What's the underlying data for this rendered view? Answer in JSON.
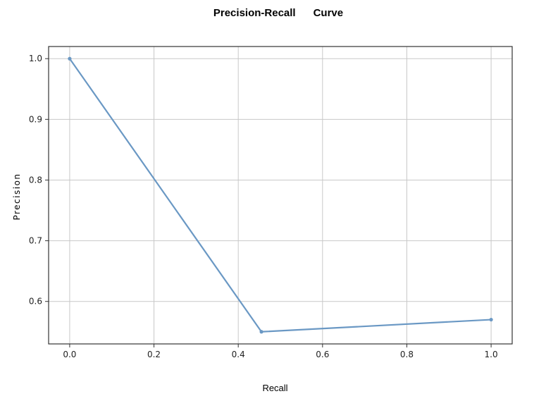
{
  "chart_data": {
    "type": "line",
    "title": "Precision-Recall      Curve",
    "xlabel": "Recall",
    "ylabel": "Precision",
    "xlim": [
      -0.05,
      1.05
    ],
    "ylim": [
      0.53,
      1.02
    ],
    "x_ticks": [
      0.0,
      0.2,
      0.4,
      0.6,
      0.8,
      1.0
    ],
    "x_tick_labels": [
      "0.0",
      "0.2",
      "0.4",
      "0.6",
      "0.8",
      "1.0"
    ],
    "y_ticks": [
      0.6,
      0.7,
      0.8,
      0.9,
      1.0
    ],
    "y_tick_labels": [
      "0.6",
      "0.7",
      "0.8",
      "0.9",
      "1.0"
    ],
    "grid": true,
    "series": [
      {
        "color": "#6a98c4",
        "x": [
          0.0,
          0.455,
          1.0
        ],
        "y": [
          1.0,
          0.55,
          0.57
        ]
      }
    ]
  }
}
